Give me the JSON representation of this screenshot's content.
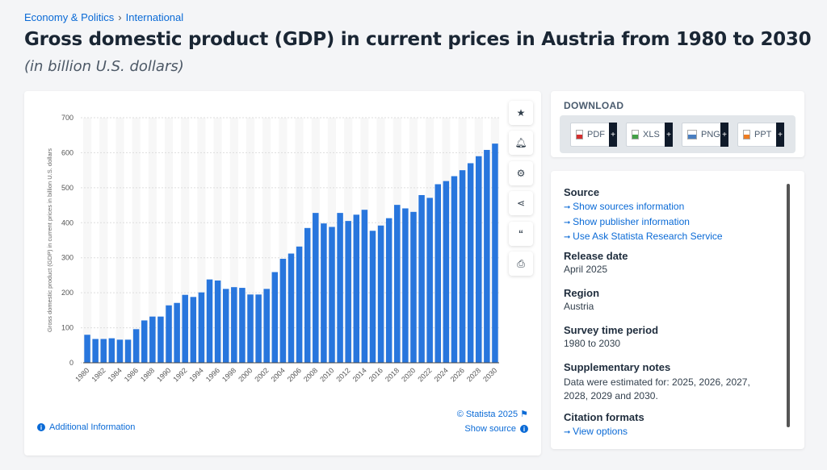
{
  "breadcrumb": [
    "Economy & Politics",
    "International"
  ],
  "title": "Gross domestic product (GDP) in current prices in Austria from 1980 to 2030",
  "subtitle": "(in billion U.S. dollars)",
  "chart_data": {
    "type": "bar",
    "title": "Gross domestic product (GDP) in current prices in Austria from 1980 to 2030",
    "xlabel": "",
    "ylabel": "Gross domestic product (GDP) in current prices in billion U.S. dollars",
    "ylim": [
      0,
      700
    ],
    "yticks": [
      0,
      100,
      200,
      300,
      400,
      500,
      600,
      700
    ],
    "categories": [
      1980,
      1981,
      1982,
      1983,
      1984,
      1985,
      1986,
      1987,
      1988,
      1989,
      1990,
      1991,
      1992,
      1993,
      1994,
      1995,
      1996,
      1997,
      1998,
      1999,
      2000,
      2001,
      2002,
      2003,
      2004,
      2005,
      2006,
      2007,
      2008,
      2009,
      2010,
      2011,
      2012,
      2013,
      2014,
      2015,
      2016,
      2017,
      2018,
      2019,
      2020,
      2021,
      2022,
      2023,
      2024,
      2025,
      2026,
      2027,
      2028,
      2029,
      2030
    ],
    "values": [
      80,
      68,
      68,
      70,
      66,
      66,
      96,
      121,
      132,
      132,
      164,
      171,
      194,
      188,
      201,
      238,
      235,
      211,
      216,
      214,
      195,
      195,
      211,
      259,
      297,
      312,
      332,
      385,
      428,
      398,
      388,
      428,
      405,
      423,
      437,
      377,
      392,
      413,
      451,
      441,
      431,
      479,
      471,
      510,
      519,
      533,
      550,
      570,
      590,
      608,
      626
    ],
    "color": "#2876dd",
    "grid": true
  },
  "chart": {
    "copyright": "© Statista 2025",
    "show_source": "Show source",
    "additional_info": "Additional Information"
  },
  "tools": [
    "star-icon",
    "bell-icon",
    "gear-icon",
    "share-icon",
    "quote-icon",
    "print-icon"
  ],
  "download": {
    "heading": "DOWNLOAD",
    "buttons": [
      {
        "label": "PDF",
        "color": "#d32f2f"
      },
      {
        "label": "XLS",
        "color": "#43a047"
      },
      {
        "label": "PNG",
        "color": "#4a7fc1"
      },
      {
        "label": "PPT",
        "color": "#ef7d22"
      }
    ]
  },
  "info": {
    "source_title": "Source",
    "source_links": [
      "Show sources information",
      "Show publisher information",
      "Use Ask Statista Research Service"
    ],
    "release_title": "Release date",
    "release": "April 2025",
    "region_title": "Region",
    "region": "Austria",
    "period_title": "Survey time period",
    "period": "1980 to 2030",
    "notes_title": "Supplementary notes",
    "notes": "Data were estimated for: 2025, 2026, 2027, 2028, 2029 and 2030.",
    "citation_title": "Citation formats",
    "citation_link": "View options"
  }
}
